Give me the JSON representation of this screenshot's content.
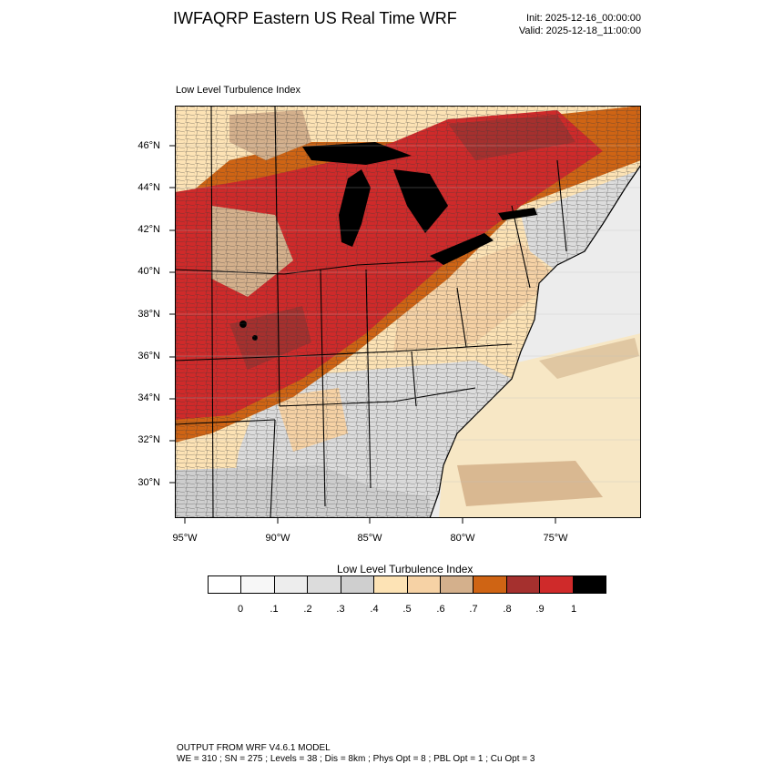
{
  "header": {
    "title": "IWFAQRP Eastern US Real Time WRF",
    "init": "Init: 2025-12-16_00:00:00",
    "valid": "Valid: 2025-12-18_11:00:00"
  },
  "map": {
    "label": "Low Level Turbulence Index",
    "lat_labels": [
      "46°N",
      "44°N",
      "42°N",
      "40°N",
      "38°N",
      "36°N",
      "34°N",
      "32°N",
      "30°N"
    ],
    "lon_labels": [
      "95°W",
      "90°W",
      "85°W",
      "80°W",
      "75°W"
    ],
    "colors": {
      "ocean": "#ececec",
      "great_lakes": "#000000",
      "state_border": "#000000",
      "county_border": "#3a3a3a"
    }
  },
  "legend": {
    "title": "Low Level Turbulence Index",
    "colors": [
      "#ffffff",
      "#f7f7f7",
      "#ededed",
      "#dcdcdc",
      "#cfcfcf",
      "#fde3b5",
      "#f6d2a5",
      "#d4b08c",
      "#cf6414",
      "#a5302e",
      "#cf2a2a",
      "#000000"
    ],
    "tick_labels": [
      "0",
      ".1",
      ".2",
      ".3",
      ".4",
      ".5",
      ".6",
      ".7",
      ".8",
      ".9",
      "1"
    ]
  },
  "footer": {
    "line1": "OUTPUT FROM WRF V4.6.1 MODEL",
    "line2": "WE = 310 ; SN = 275 ; Levels = 38 ; Dis = 8km ; Phys Opt = 8 ; PBL Opt = 1 ; Cu Opt = 3"
  }
}
